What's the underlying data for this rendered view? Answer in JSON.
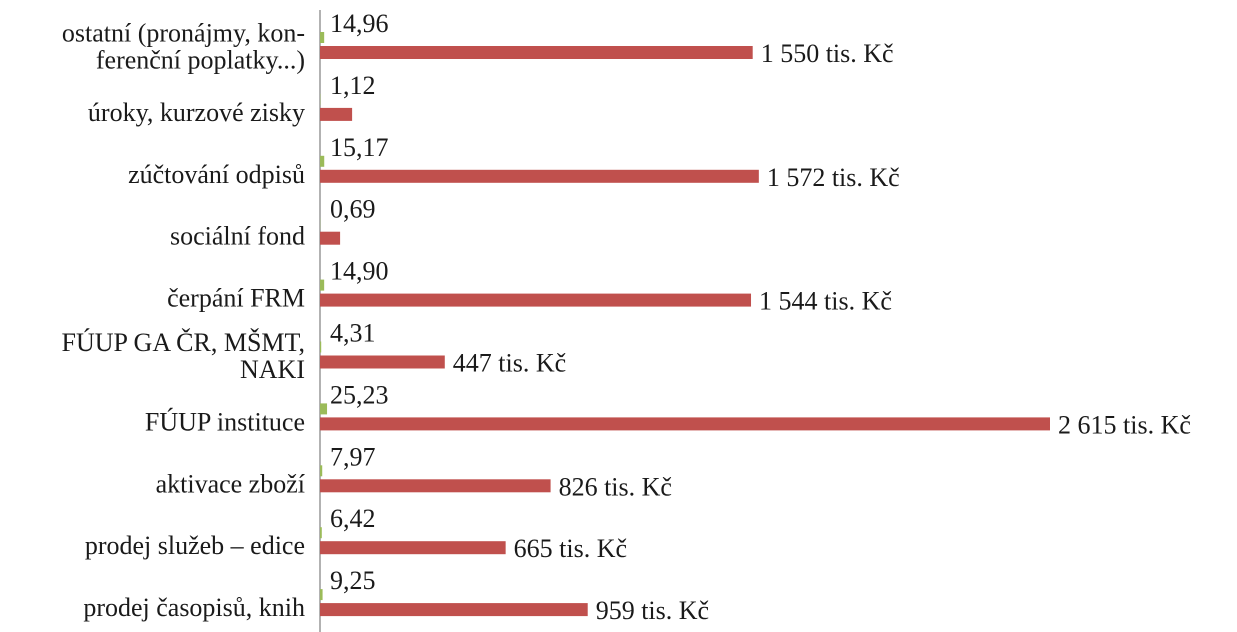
{
  "chart_data": {
    "type": "hbar",
    "categories": [
      [
        "ostatní (pronájmy, kon-",
        "ferenční poplatky...)"
      ],
      "úroky, kurzové zisky",
      "zúčtování odpisů",
      "sociální fond",
      "čerpání FRM",
      [
        "FÚUP GA ČR, MŠMT,",
        "NAKI"
      ],
      "FÚUP instituce",
      "aktivace zboží",
      "prodej služeb – edice",
      "prodej časopisů, knih"
    ],
    "series": [
      {
        "color": "#9bbb59",
        "values": [
          14.96,
          1.12,
          15.17,
          0.69,
          14.9,
          4.31,
          25.23,
          7.97,
          6.42,
          9.25
        ],
        "value_labels": [
          "14,96",
          "1,12",
          "15,17",
          "0,69",
          "14,90",
          "4,31",
          "25,23",
          "7,97",
          "6,42",
          "9,25"
        ]
      },
      {
        "color": "#c0504d",
        "values": [
          1550,
          115,
          1572,
          72,
          1544,
          447,
          2615,
          826,
          665,
          959
        ],
        "value_labels": [
          "1 550 tis. Kč",
          null,
          "1 572 tis. Kč",
          null,
          "1 544 tis. Kč",
          "447 tis. Kč",
          "2 615 tis. Kč",
          "826 tis. Kč",
          "665 tis. Kč",
          "959 tis. Kč"
        ]
      }
    ],
    "xlim": [
      0,
      2800
    ]
  }
}
